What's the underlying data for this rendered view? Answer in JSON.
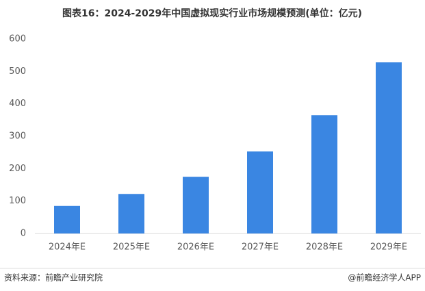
{
  "chart_data": {
    "type": "bar",
    "title": "图表16：2024-2029年中国虚拟现实行业市场规模预测(单位：亿元)",
    "categories": [
      "2024年E",
      "2025年E",
      "2026年E",
      "2027年E",
      "2028年E",
      "2029年E"
    ],
    "values": [
      85,
      122,
      175,
      253,
      365,
      528
    ],
    "color": "#3a86e2",
    "ylim": [
      0,
      600
    ],
    "yticks": [
      0,
      100,
      200,
      300,
      400,
      500,
      600
    ],
    "grid": false,
    "source": "资料来源：前瞻产业研究院",
    "credit": "@前瞻经济学人APP"
  }
}
